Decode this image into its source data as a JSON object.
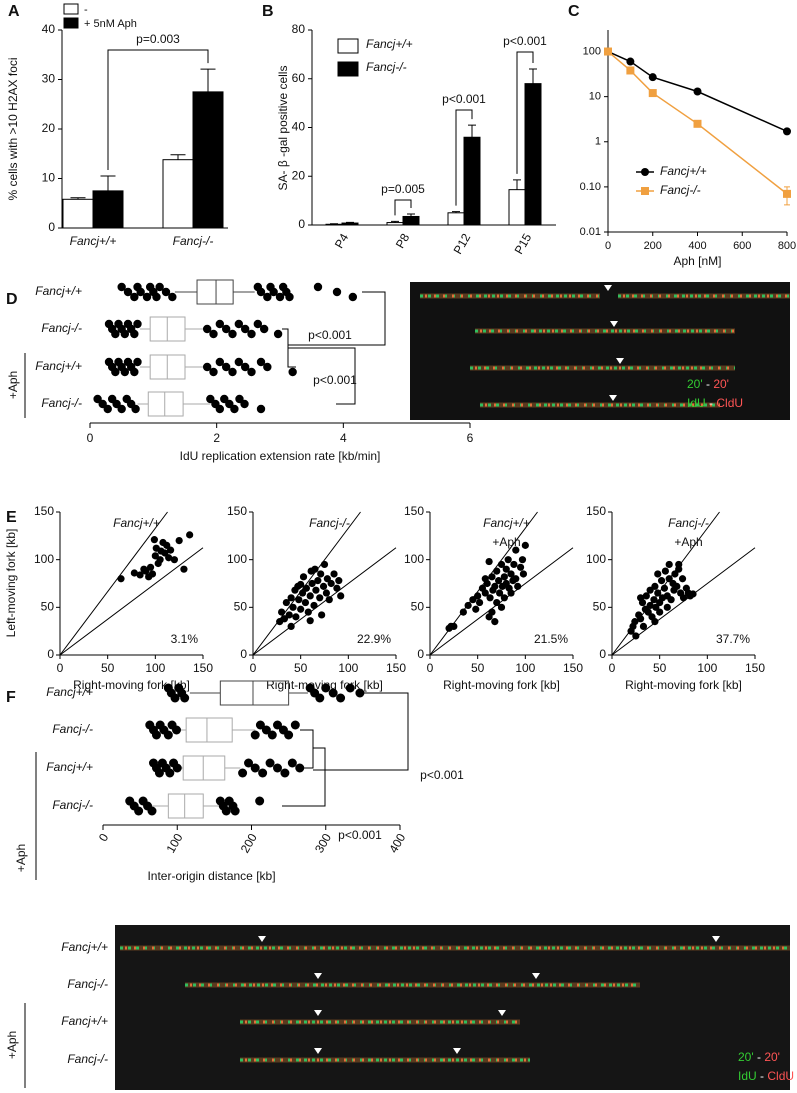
{
  "panels": [
    "A",
    "B",
    "C",
    "D",
    "E",
    "F"
  ],
  "chart_data": [
    {
      "type": "bar",
      "ylabel": "% cells with >10  H2AX foci",
      "categories": [
        "Fancj+/+",
        "Fancj-/-"
      ],
      "series": [
        {
          "name": "-",
          "color": "#ffffff",
          "values": [
            5.8,
            13.8
          ],
          "errors": [
            0.3,
            1.0
          ]
        },
        {
          "name": "+ 5nM Aph",
          "color": "#000000",
          "values": [
            7.5,
            27.5
          ],
          "errors": [
            3.0,
            4.6
          ]
        }
      ],
      "ylim": [
        0,
        40
      ],
      "yticks": [
        0,
        10,
        20,
        30,
        40
      ],
      "annotations": [
        "p=0.003"
      ]
    },
    {
      "type": "bar",
      "ylabel": "SA- β -gal positive cells",
      "categories": [
        "P4",
        "P8",
        "P12",
        "P15"
      ],
      "series": [
        {
          "name": "Fancj+/+",
          "color": "#ffffff",
          "values": [
            0.3,
            1.0,
            5.0,
            14.5
          ],
          "errors": [
            0.2,
            0.5,
            0.5,
            4.0
          ]
        },
        {
          "name": "Fancj-/-",
          "color": "#000000",
          "values": [
            0.8,
            3.5,
            36.0,
            58.0
          ],
          "errors": [
            0.3,
            1.0,
            5.0,
            6.0
          ]
        }
      ],
      "ylim": [
        0,
        80
      ],
      "yticks": [
        0,
        20,
        40,
        60,
        80
      ],
      "annotations": [
        "p=0.005",
        "p<0.001",
        "p<0.001"
      ]
    },
    {
      "type": "line",
      "xlabel": "Aph [nM]",
      "log_y": true,
      "x": [
        0,
        100,
        200,
        400,
        800
      ],
      "series": [
        {
          "name": "Fancj+/+",
          "color": "#000000",
          "marker": "circle",
          "values": [
            100,
            60,
            27,
            13,
            1.7
          ]
        },
        {
          "name": "Fancj-/-",
          "color": "#f0a040",
          "marker": "square",
          "values": [
            100,
            38,
            12,
            2.5,
            0.07
          ],
          "errors": [
            null,
            null,
            null,
            null,
            0.03
          ]
        }
      ],
      "xlim": [
        0,
        800
      ],
      "xticks": [
        0,
        200,
        400,
        600,
        800
      ],
      "ylim": [
        0.01,
        300
      ],
      "yticks": [
        0.01,
        {
          "value": 0.1,
          "label": "0.10"
        },
        1,
        10,
        100
      ]
    },
    {
      "type": "box",
      "xlabel": "IdU  replication extension rate [kb/min]",
      "group_label": "+Aph",
      "categories": [
        "Fancj+/+",
        "Fancj-/-",
        "Fancj+/+",
        "Fancj-/-"
      ],
      "colors": [
        "#444444",
        "#aaaaaa",
        "#aaaaaa",
        "#aaaaaa"
      ],
      "stats": [
        [
          1.34,
          1.69,
          1.99,
          2.26,
          2.6
        ],
        [
          0.79,
          0.95,
          1.22,
          1.5,
          1.82
        ],
        [
          0.79,
          0.95,
          1.22,
          1.5,
          1.82
        ],
        [
          0.75,
          0.92,
          1.18,
          1.47,
          1.9
        ]
      ],
      "points": [
        [
          0.5,
          0.6,
          0.7,
          0.75,
          0.8,
          0.9,
          0.95,
          1.0,
          1.05,
          1.1,
          1.2,
          1.3,
          2.65,
          2.7,
          2.8,
          2.85,
          2.9,
          3.0,
          3.05,
          3.1,
          3.15,
          3.6,
          3.9,
          4.15
        ],
        [
          0.3,
          0.35,
          0.4,
          0.45,
          0.5,
          0.55,
          0.6,
          0.65,
          0.7,
          0.75,
          1.85,
          1.95,
          2.05,
          2.15,
          2.25,
          2.35,
          2.45,
          2.55,
          2.65,
          2.75,
          2.97
        ],
        [
          0.3,
          0.35,
          0.4,
          0.45,
          0.5,
          0.55,
          0.6,
          0.65,
          0.7,
          0.75,
          1.85,
          1.95,
          2.05,
          2.15,
          2.25,
          2.35,
          2.45,
          2.55,
          2.7,
          2.8,
          3.2
        ],
        [
          0.12,
          0.2,
          0.28,
          0.35,
          0.42,
          0.5,
          0.58,
          0.65,
          0.72,
          1.9,
          1.98,
          2.05,
          2.12,
          2.2,
          2.28,
          2.36,
          2.44,
          2.7
        ]
      ],
      "xlim": [
        0,
        6
      ],
      "xticks": [
        0,
        2,
        4,
        6
      ],
      "annotations": [
        "p<0.001",
        "p<0.001"
      ]
    },
    {
      "type": "scatter",
      "title": "Fancj+/+",
      "ylabel": "Left-moving fork [kb]",
      "xlabel": "Right-moving fork [kb]",
      "annotation": "3.1%",
      "x": [
        64,
        78,
        84,
        88,
        90,
        93,
        95,
        97,
        99,
        100,
        101,
        103,
        105,
        106,
        108,
        110,
        112,
        114,
        116,
        120,
        125,
        130,
        136
      ],
      "y": [
        80,
        86,
        84,
        90,
        88,
        82,
        92,
        85,
        121,
        104,
        112,
        96,
        100,
        109,
        118,
        107,
        115,
        102,
        110,
        100,
        120,
        90,
        126
      ],
      "ref_slopes": [
        1.33,
        0.75
      ],
      "xlim": [
        0,
        150
      ],
      "ylim": [
        0,
        150
      ],
      "xticks": [
        0,
        50,
        100,
        150
      ],
      "yticks": [
        0,
        50,
        100,
        150
      ]
    },
    {
      "type": "scatter",
      "title": "Fancj-/-",
      "xlabel": "Right-moving fork [kb]",
      "annotation": "22.9%",
      "x": [
        28,
        30,
        33,
        35,
        38,
        40,
        42,
        44,
        45,
        47,
        48,
        50,
        52,
        53,
        55,
        56,
        58,
        60,
        61,
        62,
        64,
        65,
        66,
        68,
        70,
        71,
        72,
        74,
        75,
        77,
        78,
        80,
        82,
        85,
        88,
        90,
        92,
        60,
        50,
        40
      ],
      "y": [
        35,
        45,
        38,
        55,
        42,
        60,
        50,
        68,
        40,
        72,
        58,
        48,
        65,
        82,
        55,
        70,
        45,
        62,
        88,
        75,
        52,
        90,
        68,
        78,
        60,
        85,
        42,
        72,
        95,
        65,
        80,
        58,
        75,
        85,
        70,
        78,
        62,
        36,
        74,
        30
      ],
      "ref_slopes": [
        1.33,
        0.75
      ],
      "xlim": [
        0,
        150
      ],
      "ylim": [
        0,
        150
      ],
      "xticks": [
        0,
        50,
        100,
        150
      ],
      "yticks": [
        0,
        50,
        100,
        150
      ]
    },
    {
      "type": "scatter",
      "title": "Fancj+/+",
      "subtitle": "+Aph",
      "xlabel": "Right-moving fork [kb]",
      "annotation": "21.5%",
      "x": [
        20,
        22,
        25,
        35,
        40,
        45,
        48,
        50,
        52,
        55,
        58,
        60,
        62,
        63,
        65,
        66,
        68,
        70,
        70,
        72,
        73,
        75,
        76,
        78,
        78,
        80,
        80,
        82,
        83,
        85,
        85,
        87,
        88,
        90,
        90,
        92,
        95,
        97,
        98,
        100,
        75,
        68,
        65,
        58,
        62
      ],
      "y": [
        28,
        30,
        30,
        45,
        52,
        58,
        48,
        62,
        55,
        70,
        65,
        75,
        40,
        60,
        82,
        68,
        72,
        88,
        55,
        78,
        65,
        95,
        72,
        82,
        60,
        90,
        75,
        100,
        70,
        85,
        65,
        78,
        95,
        80,
        110,
        72,
        92,
        100,
        85,
        115,
        50,
        35,
        45,
        80,
        98
      ],
      "ref_slopes": [
        1.33,
        0.75
      ],
      "xlim": [
        0,
        150
      ],
      "ylim": [
        0,
        150
      ],
      "xticks": [
        0,
        50,
        100,
        150
      ],
      "yticks": [
        0,
        50,
        100,
        150
      ]
    },
    {
      "type": "scatter",
      "title": "Fancj-/-",
      "subtitle": "+Aph",
      "xlabel": "Right-moving fork [kb]",
      "annotation": "37.7%",
      "x": [
        20,
        22,
        24,
        25,
        28,
        30,
        32,
        33,
        35,
        36,
        38,
        40,
        40,
        42,
        44,
        45,
        46,
        48,
        48,
        50,
        52,
        53,
        55,
        56,
        58,
        60,
        60,
        62,
        64,
        65,
        66,
        68,
        70,
        72,
        74,
        75,
        78,
        80,
        82,
        85,
        30,
        45,
        58,
        70,
        50
      ],
      "y": [
        25,
        30,
        35,
        20,
        42,
        38,
        55,
        30,
        48,
        62,
        45,
        52,
        68,
        40,
        58,
        72,
        50,
        65,
        85,
        55,
        78,
        60,
        70,
        88,
        62,
        80,
        95,
        58,
        75,
        68,
        85,
        72,
        90,
        65,
        80,
        60,
        70,
        65,
        62,
        64,
        60,
        35,
        50,
        95,
        45
      ],
      "ref_slopes": [
        1.33,
        0.75
      ],
      "xlim": [
        0,
        150
      ],
      "ylim": [
        0,
        150
      ],
      "xticks": [
        0,
        50,
        100,
        150
      ],
      "yticks": [
        0,
        50,
        100,
        150
      ]
    },
    {
      "type": "box",
      "xlabel": "Inter-origin distance [kb]",
      "group_label": "+Aph",
      "categories": [
        "Fancj+/+",
        "Fancj-/-",
        "Fancj+/+",
        "Fancj-/-"
      ],
      "colors": [
        "#444444",
        "#aaaaaa",
        "#aaaaaa",
        "#aaaaaa"
      ],
      "stats": [
        [
          117,
          158,
          202,
          250,
          276
        ],
        [
          101,
          112,
          140,
          174,
          205
        ],
        [
          101,
          108,
          135,
          164,
          185
        ],
        [
          66,
          88,
          110,
          135,
          158
        ]
      ],
      "points": [
        [
          88,
          92,
          97,
          102,
          106,
          110,
          279,
          285,
          292,
          300,
          310,
          320,
          333,
          346
        ],
        [
          63,
          68,
          72,
          77,
          82,
          88,
          93,
          99,
          205,
          212,
          220,
          228,
          235,
          243,
          250,
          259
        ],
        [
          68,
          72,
          76,
          80,
          85,
          90,
          95,
          100,
          188,
          196,
          205,
          215,
          225,
          235,
          245,
          255,
          265
        ],
        [
          36,
          42,
          48,
          54,
          60,
          66,
          158,
          162,
          166,
          170,
          175,
          178,
          211
        ]
      ],
      "xlim": [
        0,
        400
      ],
      "xticks": [
        0,
        100,
        200,
        300,
        400
      ],
      "annotations": [
        "p<0.001",
        "p<0.001"
      ]
    }
  ],
  "images": [
    {
      "legend": [
        [
          "20'",
          "-",
          "20'"
        ],
        [
          "IdU",
          "-",
          "CldU"
        ]
      ]
    },
    {
      "rows": [
        "Fancj+/+",
        "Fancj-/-",
        "Fancj+/+",
        "Fancj-/-"
      ],
      "group_label": "+Aph",
      "legend": [
        [
          "20'",
          "-",
          "20'"
        ],
        [
          "IdU",
          "-",
          "CldU"
        ]
      ]
    }
  ]
}
